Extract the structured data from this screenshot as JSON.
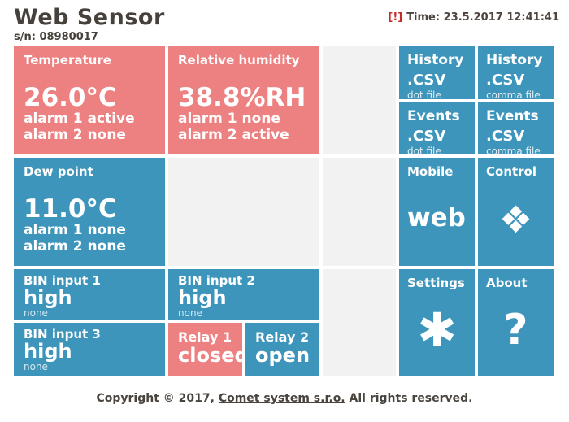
{
  "header": {
    "title": "Web Sensor",
    "serial": "s/n: 08980017",
    "alert_mark": "[!]",
    "time_text": "Time: 23.5.2017 12:41:41"
  },
  "colors": {
    "tile_red": "#ed8181",
    "tile_blue": "#3e95bb",
    "tile_gray": "#f2f2f2",
    "text_dark": "#47413c",
    "alert_red": "#c92a22"
  },
  "tiles": {
    "temperature": {
      "label": "Temperature",
      "value": "26.0°C",
      "alarm1": "alarm 1 active",
      "alarm2": "alarm 2 none"
    },
    "humidity": {
      "label": "Relative humidity",
      "value": "38.8%RH",
      "alarm1": "alarm 1 none",
      "alarm2": "alarm 2 active"
    },
    "dew_point": {
      "label": "Dew point",
      "value": "11.0°C",
      "alarm1": "alarm 1 none",
      "alarm2": "alarm 2 none"
    },
    "history_dot": {
      "label": "History",
      "value": ".CSV",
      "sub": "dot file"
    },
    "history_comma": {
      "label": "History",
      "value": ".CSV",
      "sub": "comma file"
    },
    "events_dot": {
      "label": "Events",
      "value": ".CSV",
      "sub": "dot file"
    },
    "events_comma": {
      "label": "Events",
      "value": ".CSV",
      "sub": "comma file"
    },
    "mobile": {
      "label": "Mobile",
      "value": "web"
    },
    "control": {
      "label": "Control",
      "icon": "❖"
    },
    "bin1": {
      "label": "BIN input 1",
      "value": "high",
      "sub": "none"
    },
    "bin2": {
      "label": "BIN input 2",
      "value": "high",
      "sub": "none"
    },
    "bin3": {
      "label": "BIN input 3",
      "value": "high",
      "sub": "none"
    },
    "relay1": {
      "label": "Relay 1",
      "value": "closed"
    },
    "relay2": {
      "label": "Relay 2",
      "value": "open"
    },
    "settings": {
      "label": "Settings",
      "icon": "✱"
    },
    "about": {
      "label": "About",
      "icon": "?"
    }
  },
  "footer": {
    "prefix": "Copyright © 2017, ",
    "link": "Comet system s.r.o.",
    "suffix": " All rights reserved."
  }
}
